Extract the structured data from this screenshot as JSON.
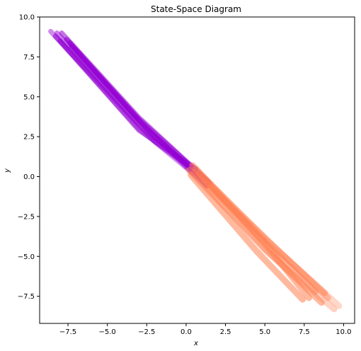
{
  "chart_data": {
    "type": "line",
    "title": "State-Space Diagram",
    "xlabel": "x",
    "ylabel": "y",
    "xlim": [
      -9.3,
      10.7
    ],
    "ylim": [
      -9.2,
      10.0
    ],
    "x_ticks": [
      -7.5,
      -5.0,
      -2.5,
      0.0,
      2.5,
      5.0,
      7.5,
      10.0
    ],
    "x_tick_labels": [
      "−7.5",
      "−5.0",
      "−2.5",
      "0.0",
      "2.5",
      "5.0",
      "7.5",
      "10.0"
    ],
    "y_ticks": [
      -7.5,
      -5.0,
      -2.5,
      0.0,
      2.5,
      5.0,
      7.5,
      10.0
    ],
    "y_tick_labels": [
      "−7.5",
      "−5.0",
      "−2.5",
      "0.0",
      "2.5",
      "5.0",
      "7.5",
      "10.0"
    ],
    "grid": false,
    "series": [
      {
        "color": "#9400D3",
        "trajectories": [
          {
            "x": [
              -8.6,
              -3.0,
              1.3
            ],
            "y": [
              9.1,
              3.0,
              -0.5
            ],
            "alpha": 0.45
          },
          {
            "x": [
              -8.2,
              -3.0,
              1.2
            ],
            "y": [
              9.0,
              3.3,
              -0.2
            ],
            "alpha": 0.5
          },
          {
            "x": [
              -7.9,
              -3.0,
              1.4
            ],
            "y": [
              9.0,
              3.7,
              -0.3
            ],
            "alpha": 0.55
          },
          {
            "x": [
              -7.6,
              -3.0,
              1.3
            ],
            "y": [
              8.6,
              3.5,
              -0.6
            ],
            "alpha": 0.6
          },
          {
            "x": [
              -7.4,
              -3.0,
              1.5
            ],
            "y": [
              8.4,
              3.6,
              -0.4
            ],
            "alpha": 0.6
          },
          {
            "x": [
              -8.0,
              -3.0,
              0.6
            ],
            "y": [
              8.5,
              2.9,
              0.5
            ],
            "alpha": 0.55
          },
          {
            "x": [
              -7.3,
              -2.5,
              1.0
            ],
            "y": [
              8.2,
              3.0,
              -0.1
            ],
            "alpha": 0.6
          },
          {
            "x": [
              -8.3,
              -2.0,
              0.9
            ],
            "y": [
              8.8,
              2.2,
              0.1
            ],
            "alpha": 0.55
          }
        ]
      },
      {
        "color": "#FF7F50",
        "trajectories": [
          {
            "x": [
              0.4,
              5.0,
              7.8
            ],
            "y": [
              0.7,
              -4.2,
              -7.6
            ],
            "alpha": 0.55
          },
          {
            "x": [
              0.2,
              5.0,
              8.6
            ],
            "y": [
              0.4,
              -4.5,
              -7.9
            ],
            "alpha": 0.55
          },
          {
            "x": [
              0.5,
              5.0,
              9.4
            ],
            "y": [
              0.3,
              -4.6,
              -8.3
            ],
            "alpha": 0.35
          },
          {
            "x": [
              0.8,
              5.3,
              8.2
            ],
            "y": [
              0.2,
              -4.4,
              -7.2
            ],
            "alpha": 0.5
          },
          {
            "x": [
              1.0,
              5.5,
              9.0
            ],
            "y": [
              0.0,
              -4.3,
              -7.6
            ],
            "alpha": 0.4
          },
          {
            "x": [
              0.3,
              4.5,
              7.4
            ],
            "y": [
              0.1,
              -4.7,
              -7.7
            ],
            "alpha": 0.55
          },
          {
            "x": [
              1.2,
              5.8,
              9.7
            ],
            "y": [
              -0.4,
              -4.6,
              -8.1
            ],
            "alpha": 0.3
          },
          {
            "x": [
              0.6,
              5.1,
              8.8
            ],
            "y": [
              0.5,
              -4.0,
              -7.3
            ],
            "alpha": 0.45
          }
        ]
      }
    ]
  }
}
